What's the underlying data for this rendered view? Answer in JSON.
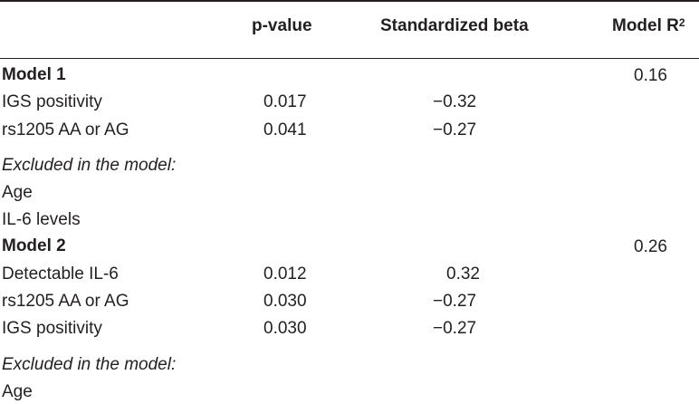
{
  "table": {
    "header": {
      "col_p": "p-value",
      "col_beta": "Standardized beta",
      "col_r2": "Model R",
      "col_r2_sup": "2"
    },
    "rows": [
      {
        "label": "Model 1",
        "p": "",
        "beta": "",
        "r2": "0.16"
      },
      {
        "label": "IGS positivity",
        "p": "0.017",
        "beta": "−0.32",
        "r2": ""
      },
      {
        "label": "rs1205 AA or AG",
        "p": "0.041",
        "beta": "−0.27",
        "r2": ""
      },
      {
        "label": "Excluded in the model:",
        "p": "",
        "beta": "",
        "r2": ""
      },
      {
        "label": "Age",
        "p": "",
        "beta": "",
        "r2": ""
      },
      {
        "label": "IL-6 levels",
        "p": "",
        "beta": "",
        "r2": ""
      },
      {
        "label": "Model 2",
        "p": "",
        "beta": "",
        "r2": "0.26"
      },
      {
        "label": "Detectable IL-6",
        "p": "0.012",
        "beta": "0.32",
        "r2": ""
      },
      {
        "label": "rs1205 AA or AG",
        "p": "0.030",
        "beta": "−0.27",
        "r2": ""
      },
      {
        "label": "IGS positivity",
        "p": "0.030",
        "beta": "−0.27",
        "r2": ""
      },
      {
        "label": "Excluded in the model:",
        "p": "",
        "beta": "",
        "r2": ""
      },
      {
        "label": "Age",
        "p": "",
        "beta": "",
        "r2": ""
      }
    ]
  }
}
